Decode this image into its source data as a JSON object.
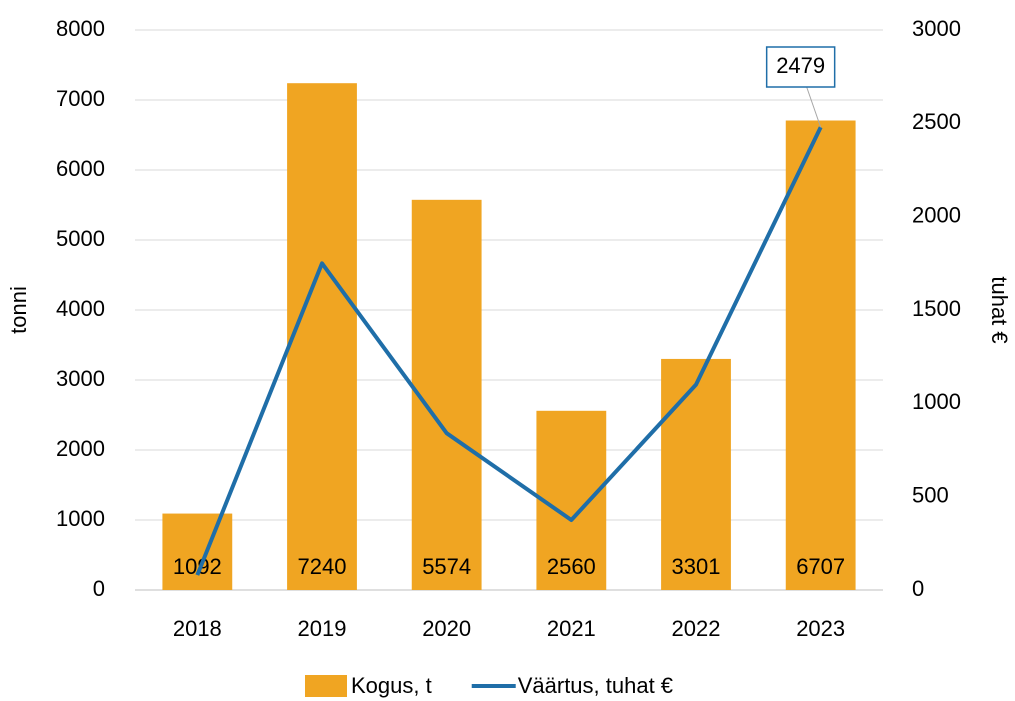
{
  "chart_data": {
    "type": "bar",
    "categories": [
      "2018",
      "2019",
      "2020",
      "2021",
      "2022",
      "2023"
    ],
    "series": [
      {
        "name": "Kogus, t",
        "type": "bar",
        "color": "#f0a522",
        "values": [
          1092,
          7240,
          5574,
          2560,
          3301,
          6707
        ],
        "data_labels": true
      },
      {
        "name": "Väärtus, tuhat €",
        "type": "line",
        "axis": "y2",
        "color": "#1f6ea8",
        "values": [
          80,
          1750,
          840,
          375,
          1100,
          2479
        ],
        "value_labels": [
          null,
          null,
          null,
          null,
          null,
          "2479"
        ]
      }
    ],
    "ylabel": "tonni",
    "y2label": "tuhat €",
    "ylim": [
      0,
      8000
    ],
    "yticks": [
      0,
      1000,
      2000,
      3000,
      4000,
      5000,
      6000,
      7000,
      8000
    ],
    "y2lim": [
      0,
      3000
    ],
    "y2ticks": [
      0,
      500,
      1000,
      1500,
      2000,
      2500,
      3000
    ],
    "grid": true,
    "legend": "bottom"
  }
}
